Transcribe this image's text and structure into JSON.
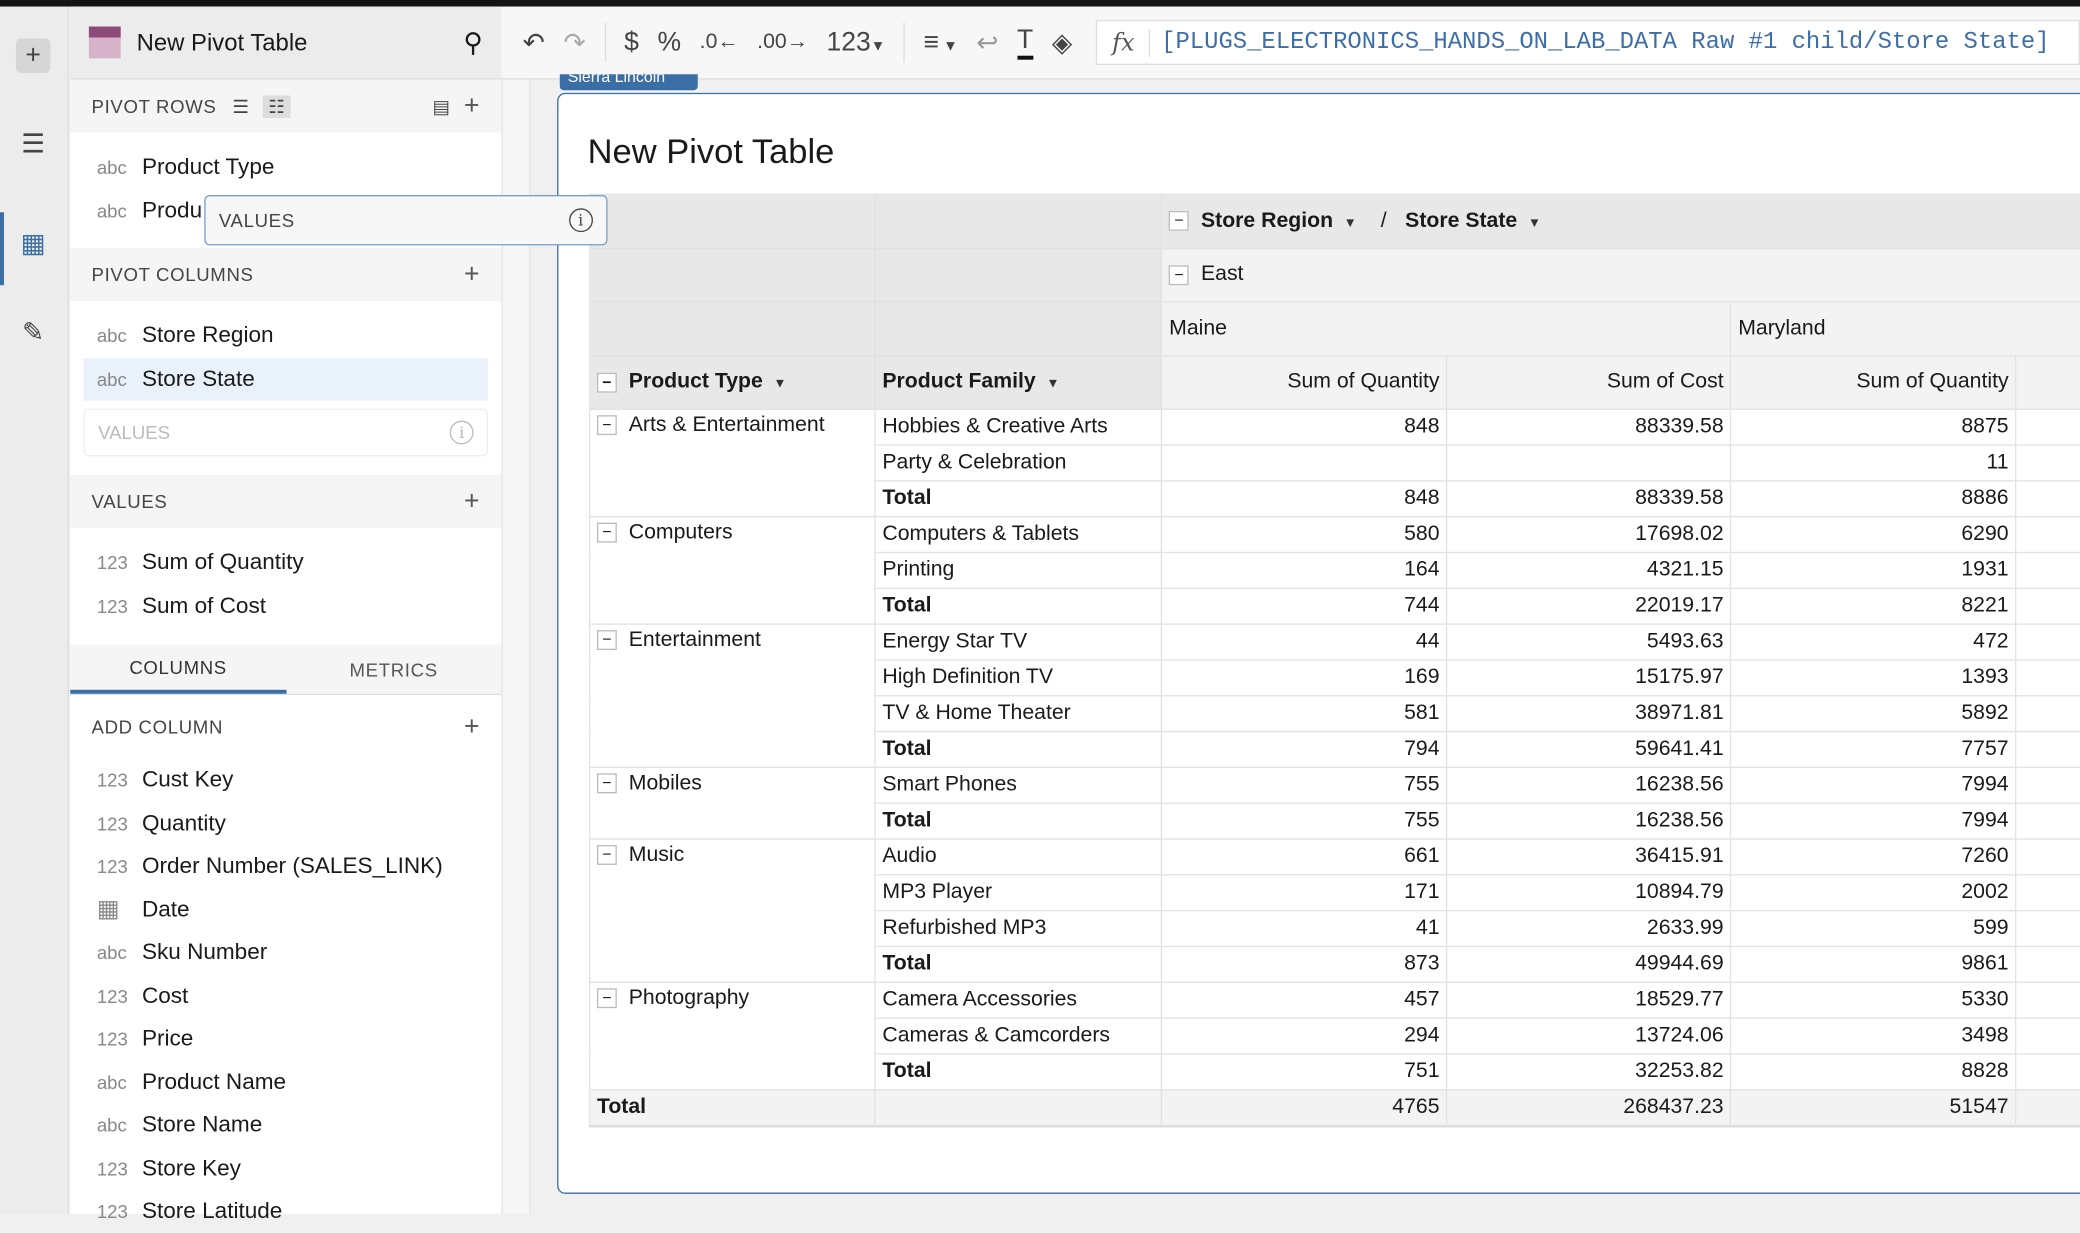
{
  "app": {
    "title": "New Pivot Table"
  },
  "sidebar": {
    "pivot_rows_label": "PIVOT ROWS",
    "pivot_rows": [
      {
        "type": "abc",
        "label": "Product Type"
      },
      {
        "type": "abc",
        "label": "Produ"
      }
    ],
    "pivot_columns_label": "PIVOT COLUMNS",
    "pivot_columns": [
      {
        "type": "abc",
        "label": "Store Region"
      },
      {
        "type": "abc",
        "label": "Store State"
      }
    ],
    "values_drop": "VALUES",
    "values_label": "VALUES",
    "values": [
      {
        "type": "123",
        "label": "Sum of Quantity"
      },
      {
        "type": "123",
        "label": "Sum of Cost"
      }
    ],
    "tabs": [
      "COLUMNS",
      "METRICS"
    ],
    "add_column_label": "ADD COLUMN",
    "columns": [
      {
        "type": "123",
        "label": "Cust Key"
      },
      {
        "type": "123",
        "label": "Quantity"
      },
      {
        "type": "123",
        "label": "Order Number (SALES_LINK)"
      },
      {
        "type": "date",
        "label": "Date"
      },
      {
        "type": "abc",
        "label": "Sku Number"
      },
      {
        "type": "123",
        "label": "Cost"
      },
      {
        "type": "123",
        "label": "Price"
      },
      {
        "type": "abc",
        "label": "Product Name"
      },
      {
        "type": "abc",
        "label": "Store Name"
      },
      {
        "type": "123",
        "label": "Store Key"
      },
      {
        "type": "123",
        "label": "Store Latitude"
      }
    ]
  },
  "drag_ghost": {
    "label": "VALUES"
  },
  "toolbar": {
    "number_format": "123",
    "formula": "[PLUGS_ELECTRONICS_HANDS_ON_LAB_DATA Raw #1 child/Store State]"
  },
  "canvas": {
    "tag": "Sierra Lincoln",
    "title": "New Pivot Table"
  },
  "pivot": {
    "col_header": {
      "region": "Store Region",
      "sep": "/",
      "state": "Store State"
    },
    "region": "East",
    "states": [
      "Maine",
      "Maryland"
    ],
    "row_headers": [
      "Product Type",
      "Product Family"
    ],
    "measures": [
      "Sum of Quantity",
      "Sum of Cost",
      "Sum of Quantity"
    ],
    "groups": [
      {
        "type": "Arts & Entertainment",
        "rows": [
          [
            "Hobbies & Creative Arts",
            "848",
            "88339.58",
            "8875"
          ],
          [
            "Party & Celebration",
            "",
            "",
            "11"
          ],
          [
            "Total",
            "848",
            "88339.58",
            "8886"
          ]
        ]
      },
      {
        "type": "Computers",
        "rows": [
          [
            "Computers & Tablets",
            "580",
            "17698.02",
            "6290"
          ],
          [
            "Printing",
            "164",
            "4321.15",
            "1931"
          ],
          [
            "Total",
            "744",
            "22019.17",
            "8221"
          ]
        ]
      },
      {
        "type": "Entertainment",
        "rows": [
          [
            "Energy Star TV",
            "44",
            "5493.63",
            "472"
          ],
          [
            "High Definition TV",
            "169",
            "15175.97",
            "1393"
          ],
          [
            "TV & Home Theater",
            "581",
            "38971.81",
            "5892"
          ],
          [
            "Total",
            "794",
            "59641.41",
            "7757"
          ]
        ]
      },
      {
        "type": "Mobiles",
        "rows": [
          [
            "Smart Phones",
            "755",
            "16238.56",
            "7994"
          ],
          [
            "Total",
            "755",
            "16238.56",
            "7994"
          ]
        ]
      },
      {
        "type": "Music",
        "rows": [
          [
            "Audio",
            "661",
            "36415.91",
            "7260"
          ],
          [
            "MP3 Player",
            "171",
            "10894.79",
            "2002"
          ],
          [
            "Refurbished MP3",
            "41",
            "2633.99",
            "599"
          ],
          [
            "Total",
            "873",
            "49944.69",
            "9861"
          ]
        ]
      },
      {
        "type": "Photography",
        "rows": [
          [
            "Camera Accessories",
            "457",
            "18529.77",
            "5330"
          ],
          [
            "Cameras & Camcorders",
            "294",
            "13724.06",
            "3498"
          ],
          [
            "Total",
            "751",
            "32253.82",
            "8828"
          ]
        ]
      }
    ],
    "grand_total": {
      "label": "Total",
      "values": [
        "4765",
        "268437.23",
        "51547"
      ]
    }
  }
}
